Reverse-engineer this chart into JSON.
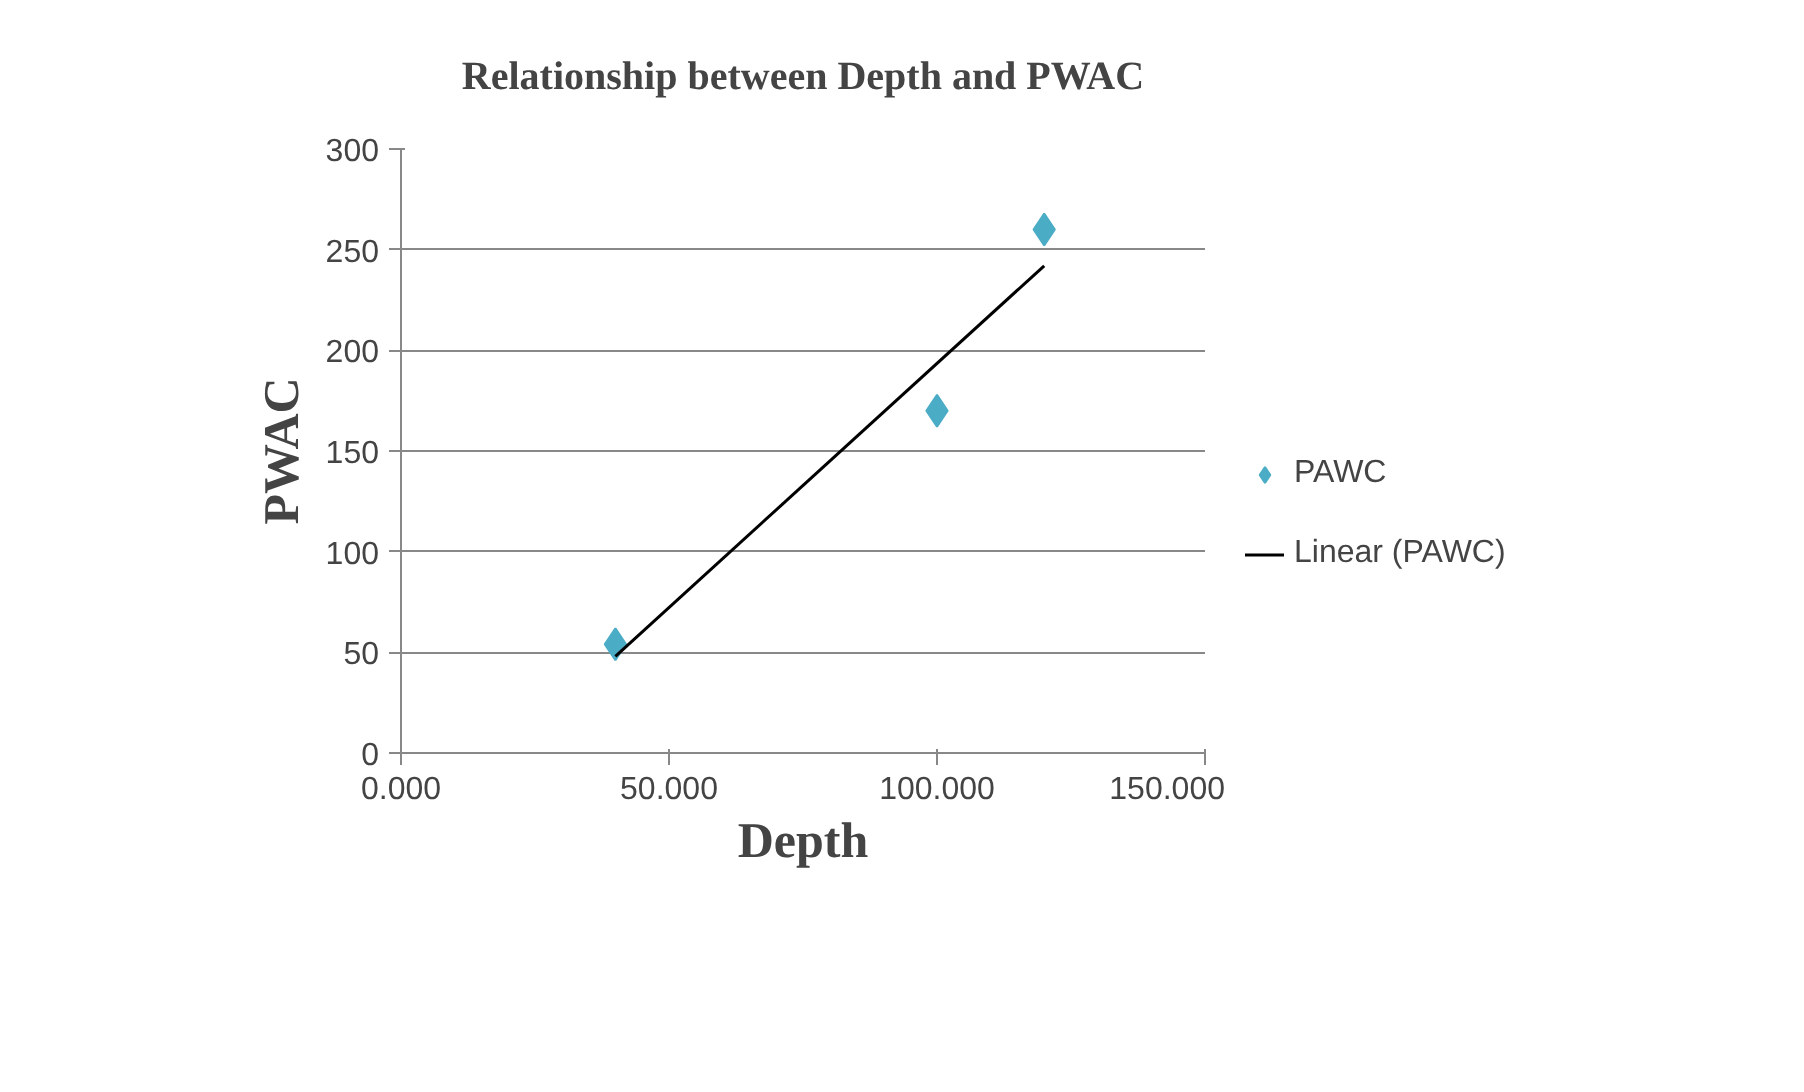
{
  "chart_data": {
    "type": "scatter",
    "title": "Relationship between Depth and PWAC",
    "xlabel": "Depth",
    "ylabel": "PWAC",
    "xlim": [
      0,
      150
    ],
    "xticks": [
      {
        "value": 0,
        "label": "0.000"
      },
      {
        "value": 50,
        "label": "50.000"
      },
      {
        "value": 100,
        "label": "100.000"
      },
      {
        "value": 150,
        "label": "150.000"
      }
    ],
    "ylim": [
      0,
      300
    ],
    "yticks": [
      0,
      50,
      100,
      150,
      200,
      250,
      300
    ],
    "grid": "y",
    "legend": "right",
    "series": [
      {
        "name": "PAWC",
        "marker": "diamond",
        "color": "#4bacc6",
        "x": [
          40,
          100,
          120
        ],
        "values": [
          54,
          170,
          260
        ]
      },
      {
        "name": "Linear (PAWC)",
        "type": "line",
        "color": "#000000",
        "line_style": "solid",
        "marker": "none",
        "x": [
          40,
          120
        ],
        "values": [
          48,
          242
        ]
      }
    ]
  }
}
